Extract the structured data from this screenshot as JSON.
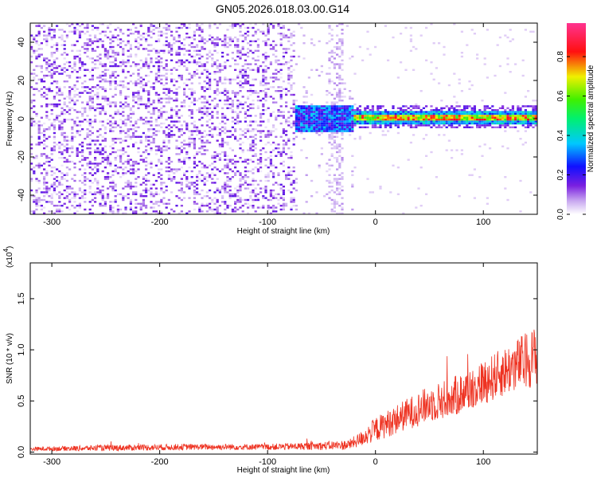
{
  "title": "GN05.2026.018.03.00.G14",
  "chart_data": [
    {
      "type": "heatmap",
      "xlabel": "Height of straight line (km)",
      "ylabel": "Frequency (Hz)",
      "xlim": [
        -320,
        150
      ],
      "ylim": [
        -50,
        50
      ],
      "xticks": [
        -300,
        -200,
        -100,
        0,
        100
      ],
      "yticks": [
        -40,
        -20,
        0,
        20,
        40
      ],
      "colorbar": {
        "label": "Normalized spectral amplitude",
        "range": [
          0,
          0.97
        ],
        "ticks": [
          "0.0",
          "0.2",
          "0.4",
          "0.6",
          "0.8"
        ],
        "colormap": "rainbow (purple-blue-cyan-green-yellow-red-pink)"
      },
      "description_regions": [
        {
          "x_range": [
            -320,
            -75
          ],
          "freq_range": [
            -50,
            50
          ],
          "amplitude": 0.05,
          "pattern": "scattered noise"
        },
        {
          "x_range": [
            -75,
            -25
          ],
          "freq_range": [
            -10,
            10
          ],
          "amplitude": 0.3,
          "pattern": "noise with emerging tone"
        },
        {
          "x_range": [
            -25,
            150
          ],
          "freq_center": 1,
          "freq_halfwidth": 3,
          "amplitude": 0.8,
          "pattern": "stable tone"
        }
      ]
    },
    {
      "type": "line",
      "xlabel": "Height of straight line (km)",
      "ylabel": "SNR (10 * v/v)",
      "scale_label": "(x10",
      "scale_exp": "4",
      "xlim": [
        -320,
        150
      ],
      "ylim": [
        -0.02,
        1.85
      ],
      "xticks": [
        -300,
        -200,
        -100,
        0,
        100
      ],
      "yticks": [
        0.0,
        0.5,
        1.0,
        1.5
      ],
      "series_color": "#ee3322",
      "trend": {
        "x": [
          -320,
          -250,
          -175,
          -100,
          -50,
          -25,
          -15,
          0,
          25,
          50,
          75,
          100,
          125,
          150
        ],
        "y": [
          0.03,
          0.04,
          0.05,
          0.05,
          0.06,
          0.07,
          0.12,
          0.22,
          0.35,
          0.47,
          0.55,
          0.68,
          0.82,
          0.95
        ],
        "noise": [
          0.02,
          0.03,
          0.03,
          0.03,
          0.04,
          0.05,
          0.07,
          0.12,
          0.15,
          0.18,
          0.2,
          0.22,
          0.25,
          0.3
        ]
      }
    }
  ]
}
